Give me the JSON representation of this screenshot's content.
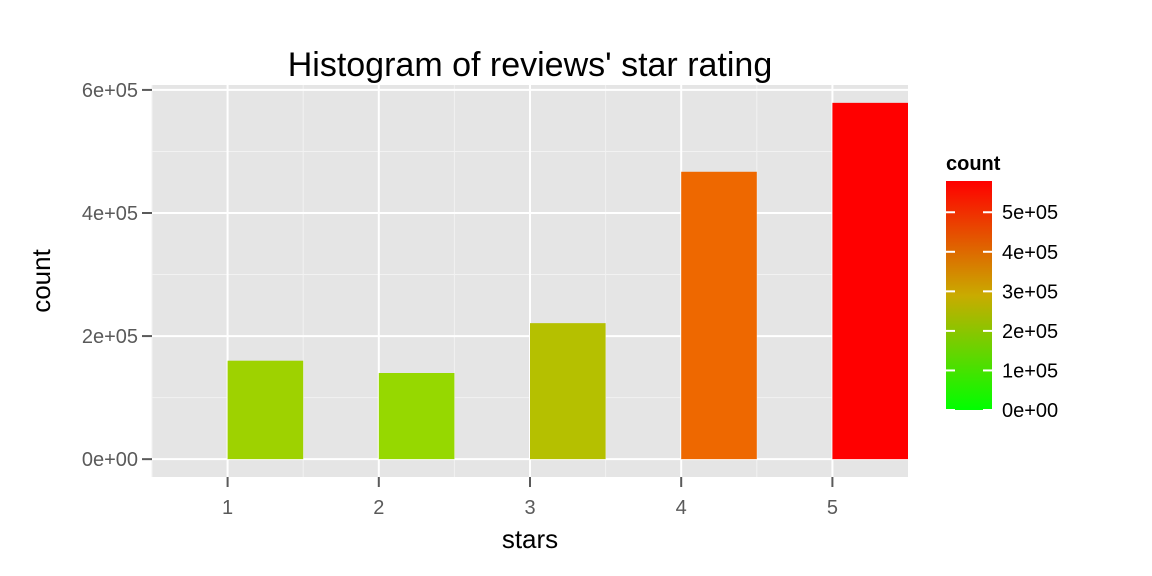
{
  "chart_data": {
    "type": "bar",
    "title": "Histogram of reviews' star rating",
    "xlabel": "stars",
    "ylabel": "count",
    "x": [
      1,
      2,
      3,
      4,
      5
    ],
    "x_ticks": [
      "1",
      "2",
      "3",
      "4",
      "5"
    ],
    "values": [
      160000,
      140000,
      221000,
      467000,
      579000
    ],
    "xlim": [
      0.5,
      5.5
    ],
    "ylim": [
      -29000,
      608000
    ],
    "y_ticks": [
      0,
      200000,
      400000,
      600000
    ],
    "y_tick_labels": [
      "0e+00",
      "2e+05",
      "4e+05",
      "6e+05"
    ],
    "grid": true,
    "fill_scale": {
      "title": "count",
      "low_color": "#00ff00",
      "high_color": "#ff0000",
      "range": [
        0,
        579000
      ],
      "ticks": [
        0,
        100000,
        200000,
        300000,
        400000,
        500000
      ],
      "tick_labels": [
        "0e+00",
        "1e+05",
        "2e+05",
        "3e+05",
        "4e+05",
        "5e+05"
      ]
    },
    "legend_position": "right"
  }
}
